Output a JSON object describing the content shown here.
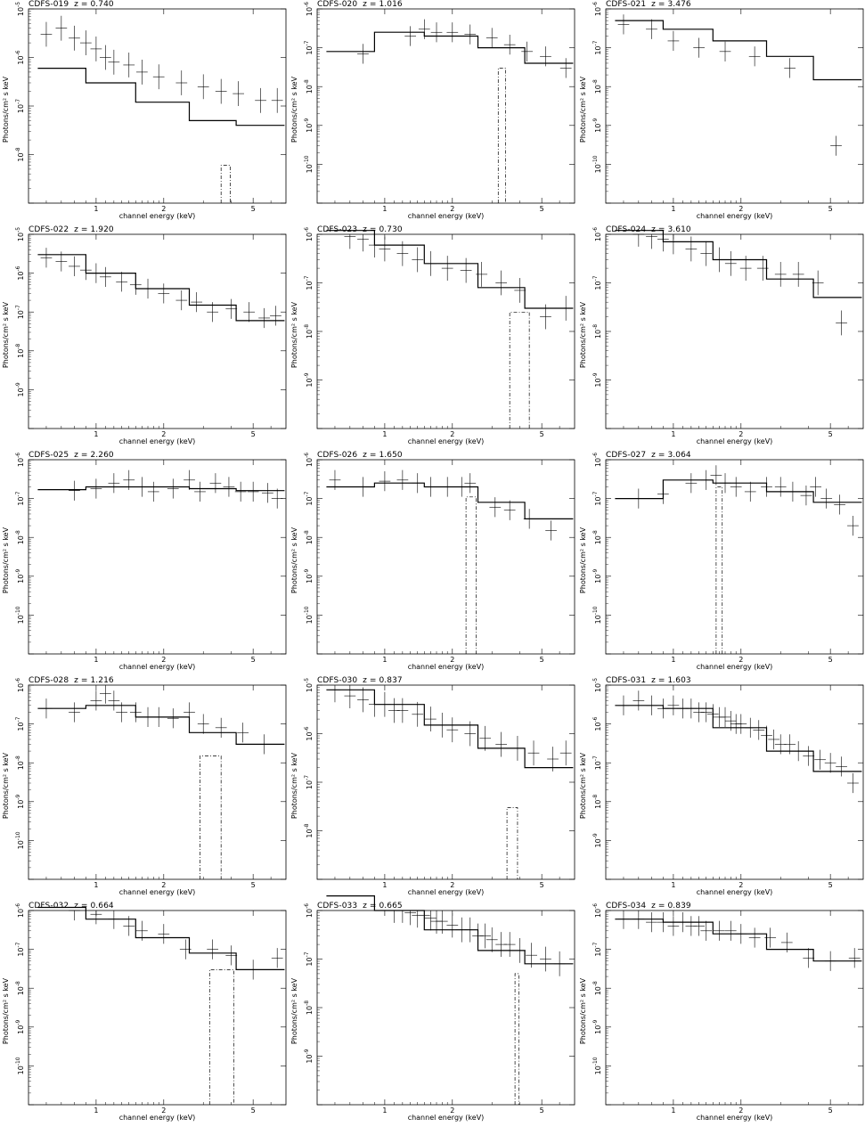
{
  "page": {
    "xlabel": "channel energy (keV)",
    "ylabel": "Photons/cm² s keV"
  },
  "chart_data": [
    {
      "type": "line",
      "title": "CDFS-019",
      "z": "z = 0.740",
      "yexp": [
        -9,
        -5
      ],
      "xticks": [
        "1",
        "2",
        "5"
      ],
      "line": [
        6e-07,
        3e-07,
        1.2e-07,
        5e-08,
        4e-08
      ],
      "feature": [
        3.6,
        3.95,
        6e-09
      ],
      "pts": [
        [
          0.6,
          3e-06
        ],
        [
          0.7,
          4e-06
        ],
        [
          0.8,
          2.5e-06
        ],
        [
          0.9,
          2e-06
        ],
        [
          1.0,
          1.5e-06
        ],
        [
          1.1,
          1e-06
        ],
        [
          1.2,
          8e-07
        ],
        [
          1.4,
          7e-07
        ],
        [
          1.6,
          5e-07
        ],
        [
          1.9,
          4e-07
        ],
        [
          2.4,
          3e-07
        ],
        [
          3.0,
          2.5e-07
        ],
        [
          3.6,
          2e-07
        ],
        [
          4.3,
          1.8e-07
        ],
        [
          5.4,
          1.3e-07
        ],
        [
          6.4,
          1.3e-07
        ]
      ]
    },
    {
      "type": "line",
      "title": "CDFS-020",
      "z": "z = 1.016",
      "yexp": [
        -11,
        -6
      ],
      "xticks": [
        "1",
        "2",
        "5"
      ],
      "line": [
        8e-08,
        2.5e-07,
        2e-07,
        1e-07,
        4e-08
      ],
      "feature": [
        3.2,
        3.45,
        3e-08
      ],
      "pts": [
        [
          0.8,
          7e-08
        ],
        [
          1.3,
          2e-07
        ],
        [
          1.5,
          3e-07
        ],
        [
          1.7,
          2.5e-07
        ],
        [
          2.0,
          2.5e-07
        ],
        [
          2.4,
          2.2e-07
        ],
        [
          3.0,
          1.8e-07
        ],
        [
          3.6,
          1.2e-07
        ],
        [
          4.3,
          8e-08
        ],
        [
          5.2,
          6e-08
        ],
        [
          6.4,
          3e-08
        ]
      ]
    },
    {
      "type": "line",
      "title": "CDFS-021",
      "z": "z = 3.476",
      "yexp": [
        -11,
        -6
      ],
      "xticks": [
        "1",
        "2",
        "5"
      ],
      "line": [
        5e-07,
        3e-07,
        1.5e-07,
        6e-08,
        1.5e-08
      ],
      "feature": null,
      "pts": [
        [
          0.6,
          4e-07
        ],
        [
          0.8,
          3e-07
        ],
        [
          1.0,
          1.5e-07
        ],
        [
          1.3,
          1e-07
        ],
        [
          1.7,
          8e-08
        ],
        [
          2.3,
          6e-08
        ],
        [
          3.3,
          3e-08
        ],
        [
          5.3,
          3e-10
        ]
      ]
    },
    {
      "type": "line",
      "title": "CDFS-022",
      "z": "z = 1.920",
      "yexp": [
        -10,
        -5
      ],
      "xticks": [
        "1",
        "2",
        "5"
      ],
      "line": [
        3e-06,
        1e-06,
        4e-07,
        1.5e-07,
        6e-08
      ],
      "feature": null,
      "pts": [
        [
          0.6,
          2.5e-06
        ],
        [
          0.7,
          2e-06
        ],
        [
          0.8,
          1.5e-06
        ],
        [
          0.9,
          1.2e-06
        ],
        [
          1.0,
          1e-06
        ],
        [
          1.1,
          8e-07
        ],
        [
          1.3,
          6e-07
        ],
        [
          1.5,
          5e-07
        ],
        [
          1.7,
          4e-07
        ],
        [
          2.0,
          3e-07
        ],
        [
          2.4,
          2e-07
        ],
        [
          2.8,
          1.8e-07
        ],
        [
          3.3,
          1e-07
        ],
        [
          4.0,
          1.2e-07
        ],
        [
          4.8,
          1e-07
        ],
        [
          5.6,
          7e-08
        ],
        [
          6.3,
          8e-08
        ]
      ]
    },
    {
      "type": "line",
      "title": "CDFS-023",
      "z": "z = 0.730",
      "yexp": [
        -10,
        -6
      ],
      "xticks": [
        "1",
        "2",
        "5"
      ],
      "line": [
        1.2e-06,
        6e-07,
        2.5e-07,
        8e-08,
        3e-08
      ],
      "feature": [
        3.6,
        4.4,
        2.5e-08
      ],
      "pts": [
        [
          0.6,
          1.2e-06
        ],
        [
          0.7,
          9e-07
        ],
        [
          0.8,
          8e-07
        ],
        [
          0.9,
          6e-07
        ],
        [
          1.0,
          5e-07
        ],
        [
          1.2,
          4e-07
        ],
        [
          1.4,
          3e-07
        ],
        [
          1.6,
          2.5e-07
        ],
        [
          1.9,
          2e-07
        ],
        [
          2.3,
          1.8e-07
        ],
        [
          2.7,
          1.5e-07
        ],
        [
          3.3,
          1e-07
        ],
        [
          4.0,
          7e-08
        ],
        [
          5.2,
          2e-08
        ],
        [
          6.4,
          3e-08
        ]
      ]
    },
    {
      "type": "line",
      "title": "CDFS-024",
      "z": "z = 3.610",
      "yexp": [
        -10,
        -6
      ],
      "xticks": [
        "1",
        "2",
        "5"
      ],
      "line": [
        1.2e-06,
        7e-07,
        3e-07,
        1.2e-07,
        5e-08
      ],
      "feature": null,
      "pts": [
        [
          0.6,
          1.2e-06
        ],
        [
          0.7,
          1e-06
        ],
        [
          0.8,
          9e-07
        ],
        [
          0.9,
          8e-07
        ],
        [
          1.0,
          7e-07
        ],
        [
          1.2,
          5e-07
        ],
        [
          1.4,
          4e-07
        ],
        [
          1.6,
          3e-07
        ],
        [
          1.8,
          2.5e-07
        ],
        [
          2.1,
          2e-07
        ],
        [
          2.5,
          2e-07
        ],
        [
          3.0,
          1.5e-07
        ],
        [
          3.6,
          1.5e-07
        ],
        [
          4.4,
          1e-07
        ],
        [
          5.6,
          1.5e-08
        ]
      ]
    },
    {
      "type": "line",
      "title": "CDFS-025",
      "z": "z = 2.260",
      "yexp": [
        -11,
        -6
      ],
      "xticks": [
        "1",
        "2",
        "5"
      ],
      "line": [
        1.7e-07,
        2e-07,
        2e-07,
        1.8e-07,
        1.6e-07
      ],
      "feature": null,
      "pts": [
        [
          0.8,
          1.6e-07
        ],
        [
          1.0,
          1.8e-07
        ],
        [
          1.2,
          2.5e-07
        ],
        [
          1.4,
          3e-07
        ],
        [
          1.6,
          2e-07
        ],
        [
          1.8,
          1.5e-07
        ],
        [
          2.2,
          1.8e-07
        ],
        [
          2.6,
          3e-07
        ],
        [
          2.9,
          1.5e-07
        ],
        [
          3.4,
          2.5e-07
        ],
        [
          3.9,
          2e-07
        ],
        [
          4.4,
          1.5e-07
        ],
        [
          5.0,
          1.5e-07
        ],
        [
          5.8,
          1.4e-07
        ],
        [
          6.4,
          1e-07
        ]
      ]
    },
    {
      "type": "line",
      "title": "CDFS-026",
      "z": "z = 1.650",
      "yexp": [
        -11,
        -6
      ],
      "xticks": [
        "1",
        "2",
        "5"
      ],
      "line": [
        2e-07,
        2.5e-07,
        2e-07,
        8e-08,
        3e-08
      ],
      "feature": [
        2.3,
        2.55,
        1.1e-07
      ],
      "pts": [
        [
          0.6,
          3e-07
        ],
        [
          0.8,
          2e-07
        ],
        [
          1.0,
          2.8e-07
        ],
        [
          1.2,
          3e-07
        ],
        [
          1.4,
          2.5e-07
        ],
        [
          1.6,
          2e-07
        ],
        [
          1.9,
          2e-07
        ],
        [
          2.2,
          2e-07
        ],
        [
          2.4,
          2.5e-07
        ],
        [
          3.1,
          6e-08
        ],
        [
          3.6,
          5e-08
        ],
        [
          4.4,
          3e-08
        ],
        [
          5.5,
          1.5e-08
        ]
      ]
    },
    {
      "type": "line",
      "title": "CDFS-027",
      "z": "z = 3.064",
      "yexp": [
        -11,
        -6
      ],
      "xticks": [
        "1",
        "2",
        "5"
      ],
      "line": [
        1e-07,
        3e-07,
        2.5e-07,
        1.5e-07,
        8e-08
      ],
      "feature": [
        1.55,
        1.65,
        2e-07
      ],
      "pts": [
        [
          0.7,
          1e-07
        ],
        [
          0.9,
          1.3e-07
        ],
        [
          1.2,
          2.5e-07
        ],
        [
          1.4,
          3e-07
        ],
        [
          1.55,
          4e-07
        ],
        [
          1.7,
          2.5e-07
        ],
        [
          1.9,
          2e-07
        ],
        [
          2.2,
          1.5e-07
        ],
        [
          2.6,
          2e-07
        ],
        [
          3.0,
          2e-07
        ],
        [
          3.4,
          1.5e-07
        ],
        [
          3.9,
          1.2e-07
        ],
        [
          4.3,
          2e-07
        ],
        [
          4.8,
          1e-07
        ],
        [
          5.5,
          7e-08
        ],
        [
          6.3,
          2e-08
        ]
      ]
    },
    {
      "type": "line",
      "title": "CDFS-028",
      "z": "z = 1.216",
      "yexp": [
        -11,
        -6
      ],
      "xticks": [
        "1",
        "2",
        "5"
      ],
      "line": [
        2.5e-07,
        3e-07,
        1.5e-07,
        6e-08,
        3e-08
      ],
      "feature": [
        2.9,
        3.6,
        1.5e-08
      ],
      "pts": [
        [
          0.6,
          2.5e-07
        ],
        [
          0.8,
          2e-07
        ],
        [
          1.0,
          4e-07
        ],
        [
          1.1,
          6e-07
        ],
        [
          1.2,
          4e-07
        ],
        [
          1.3,
          2e-07
        ],
        [
          1.5,
          2e-07
        ],
        [
          1.7,
          1.5e-07
        ],
        [
          1.9,
          1.5e-07
        ],
        [
          2.2,
          1.4e-07
        ],
        [
          2.6,
          2e-07
        ],
        [
          3.0,
          1e-07
        ],
        [
          3.6,
          8e-08
        ],
        [
          4.5,
          6e-08
        ],
        [
          5.6,
          3e-08
        ]
      ]
    },
    {
      "type": "line",
      "title": "CDFS-030",
      "z": "z = 0.837",
      "yexp": [
        -9,
        -5
      ],
      "xticks": [
        "1",
        "2",
        "5"
      ],
      "line": [
        8e-06,
        4e-06,
        1.5e-06,
        5e-07,
        2e-07
      ],
      "feature": [
        3.5,
        3.9,
        3e-08
      ],
      "pts": [
        [
          0.6,
          8e-06
        ],
        [
          0.7,
          6e-06
        ],
        [
          0.8,
          5e-06
        ],
        [
          0.9,
          4e-06
        ],
        [
          1.0,
          4e-06
        ],
        [
          1.1,
          3e-06
        ],
        [
          1.2,
          3e-06
        ],
        [
          1.4,
          2.5e-06
        ],
        [
          1.6,
          2e-06
        ],
        [
          1.8,
          1.5e-06
        ],
        [
          2.0,
          1.2e-06
        ],
        [
          2.4,
          1e-06
        ],
        [
          2.8,
          8e-07
        ],
        [
          3.3,
          6e-07
        ],
        [
          3.9,
          5e-07
        ],
        [
          4.6,
          4e-07
        ],
        [
          5.6,
          3e-07
        ],
        [
          6.4,
          4e-07
        ]
      ]
    },
    {
      "type": "line",
      "title": "CDFS-031",
      "z": "z = 1.603",
      "yexp": [
        -10,
        -5
      ],
      "xticks": [
        "1",
        "2",
        "5"
      ],
      "line": [
        3e-06,
        2.5e-06,
        8e-07,
        2e-07,
        6e-08
      ],
      "feature": null,
      "pts": [
        [
          0.6,
          3e-06
        ],
        [
          0.7,
          4e-06
        ],
        [
          0.8,
          3e-06
        ],
        [
          0.9,
          2.5e-06
        ],
        [
          1.0,
          3e-06
        ],
        [
          1.1,
          2.5e-06
        ],
        [
          1.2,
          2.5e-06
        ],
        [
          1.3,
          2e-06
        ],
        [
          1.4,
          2e-06
        ],
        [
          1.5,
          1.8e-06
        ],
        [
          1.6,
          1.5e-06
        ],
        [
          1.7,
          1.5e-06
        ],
        [
          1.8,
          1.2e-06
        ],
        [
          1.9,
          1e-06
        ],
        [
          2.0,
          1e-06
        ],
        [
          2.2,
          8e-07
        ],
        [
          2.4,
          7e-07
        ],
        [
          2.6,
          5e-07
        ],
        [
          2.8,
          4e-07
        ],
        [
          3.0,
          3e-07
        ],
        [
          3.3,
          3e-07
        ],
        [
          3.6,
          2e-07
        ],
        [
          4.0,
          1.5e-07
        ],
        [
          4.5,
          1.2e-07
        ],
        [
          5.0,
          1e-07
        ],
        [
          5.6,
          8e-08
        ],
        [
          6.3,
          3e-08
        ]
      ]
    },
    {
      "type": "line",
      "title": "CDFS-032",
      "z": "z = 0.664",
      "yexp": [
        -11,
        -6
      ],
      "xticks": [
        "1",
        "2",
        "5"
      ],
      "line": [
        1.2e-06,
        6e-07,
        2e-07,
        8e-08,
        3e-08
      ],
      "feature": [
        3.2,
        4.1,
        3e-08
      ],
      "pts": [
        [
          0.6,
          1.2e-06
        ],
        [
          0.8,
          1e-06
        ],
        [
          1.0,
          8e-07
        ],
        [
          1.2,
          6e-07
        ],
        [
          1.4,
          4e-07
        ],
        [
          1.6,
          3e-07
        ],
        [
          2.0,
          2.5e-07
        ],
        [
          2.5,
          1e-07
        ],
        [
          3.3,
          1e-07
        ],
        [
          4.0,
          7e-08
        ],
        [
          5.0,
          3e-08
        ],
        [
          6.4,
          6e-08
        ]
      ]
    },
    {
      "type": "line",
      "title": "CDFS-033",
      "z": "z = 0.665",
      "yexp": [
        -10,
        -6
      ],
      "xticks": [
        "1",
        "2",
        "5"
      ],
      "line": [
        2e-06,
        1e-06,
        4e-07,
        1.5e-07,
        8e-08
      ],
      "feature": [
        3.8,
        3.95,
        5e-08
      ],
      "pts": [
        [
          0.6,
          2e-06
        ],
        [
          0.7,
          1.8e-06
        ],
        [
          0.8,
          1.5e-06
        ],
        [
          0.9,
          1.4e-06
        ],
        [
          1.0,
          1.2e-06
        ],
        [
          1.1,
          1e-06
        ],
        [
          1.2,
          1e-06
        ],
        [
          1.3,
          9e-07
        ],
        [
          1.4,
          8e-07
        ],
        [
          1.5,
          8e-07
        ],
        [
          1.6,
          7e-07
        ],
        [
          1.7,
          6e-07
        ],
        [
          1.8,
          6e-07
        ],
        [
          2.0,
          5e-07
        ],
        [
          2.2,
          4e-07
        ],
        [
          2.4,
          4e-07
        ],
        [
          2.6,
          3e-07
        ],
        [
          2.8,
          3e-07
        ],
        [
          3.0,
          2.5e-07
        ],
        [
          3.3,
          2e-07
        ],
        [
          3.6,
          2e-07
        ],
        [
          4.0,
          1.5e-07
        ],
        [
          4.5,
          1.2e-07
        ],
        [
          5.2,
          1e-07
        ],
        [
          6.0,
          8e-08
        ]
      ]
    },
    {
      "type": "line",
      "title": "CDFS-034",
      "z": "z = 0.839",
      "yexp": [
        -11,
        -6
      ],
      "xticks": [
        "1",
        "2",
        "5"
      ],
      "line": [
        6e-07,
        5e-07,
        2.5e-07,
        1e-07,
        5e-08
      ],
      "feature": null,
      "pts": [
        [
          0.6,
          6e-07
        ],
        [
          0.7,
          6e-07
        ],
        [
          0.8,
          5e-07
        ],
        [
          0.9,
          5e-07
        ],
        [
          1.0,
          4e-07
        ],
        [
          1.1,
          5e-07
        ],
        [
          1.2,
          4e-07
        ],
        [
          1.3,
          4e-07
        ],
        [
          1.4,
          3e-07
        ],
        [
          1.6,
          3e-07
        ],
        [
          1.8,
          3e-07
        ],
        [
          2.0,
          2.5e-07
        ],
        [
          2.3,
          2e-07
        ],
        [
          2.7,
          2e-07
        ],
        [
          3.2,
          1.5e-07
        ],
        [
          4.0,
          6e-08
        ],
        [
          5.0,
          5e-08
        ],
        [
          6.4,
          6e-08
        ]
      ]
    }
  ]
}
